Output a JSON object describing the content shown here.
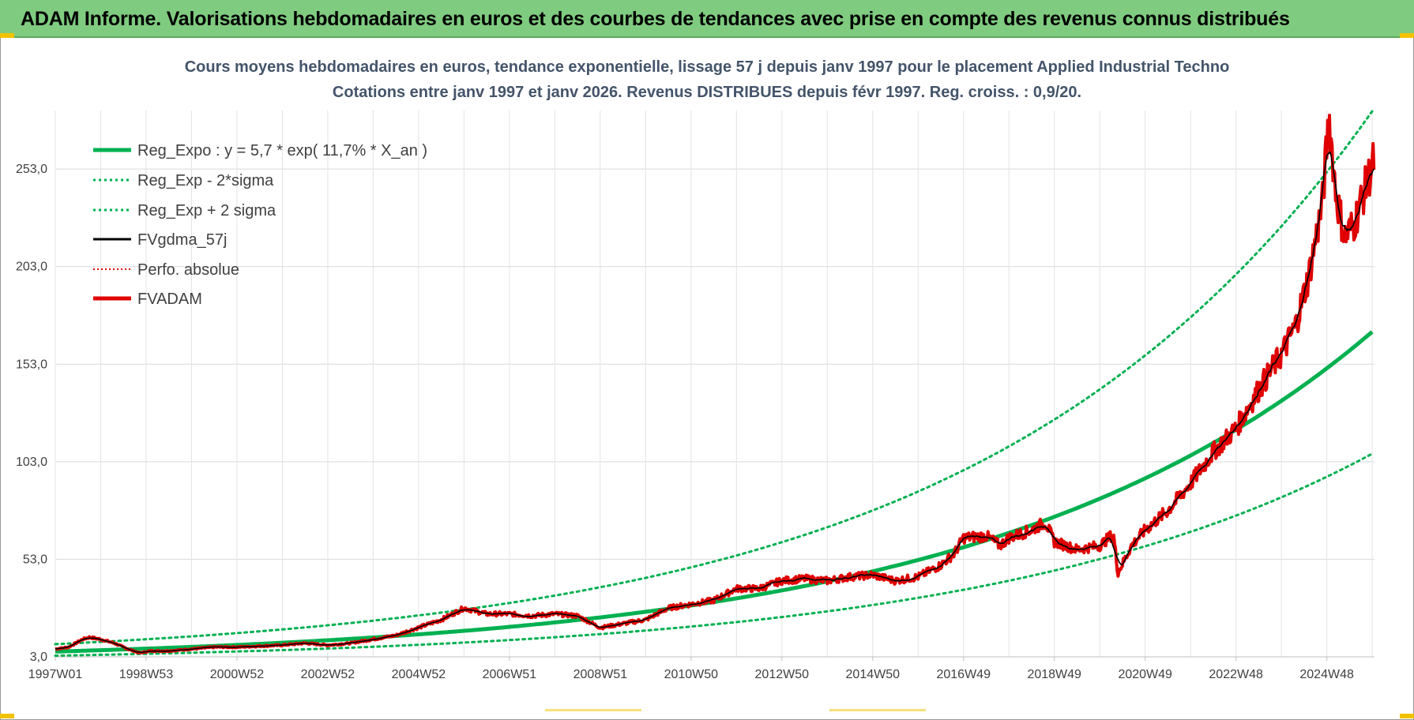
{
  "banner": {
    "title": "ADAM Informe. Valorisations hebdomadaires en euros et des courbes de tendances avec prise en compte des revenus connus distribués"
  },
  "colors": {
    "banner_bg": "#7fcb7f",
    "trend": "#00b050",
    "fv": "#e00000",
    "smooth": "#000000",
    "title": "#44546a"
  },
  "chart_data": {
    "type": "line",
    "title": "Cours moyens hebdomadaires en euros, tendance exponentielle, lissage 57 j depuis janv 1997 pour le placement Applied Industrial Techno",
    "subtitle": "Cotations entre janv 1997 et janv 2026. Revenus DISTRIBUES depuis févr 1997. Reg. croiss. : 0,9/20.",
    "xlabel": "",
    "ylabel": "",
    "x_ticks": [
      "1997W01",
      "1998W53",
      "2000W52",
      "2002W52",
      "2004W52",
      "2006W51",
      "2008W51",
      "2010W50",
      "2012W50",
      "2014W50",
      "2016W49",
      "2018W49",
      "2020W49",
      "2022W48",
      "2024W48"
    ],
    "y_ticks": [
      "3,0",
      "53,0",
      "103,0",
      "153,0",
      "203,0",
      "253,0"
    ],
    "xlim": [
      1997.0,
      2026.05
    ],
    "ylim": [
      3,
      283
    ],
    "grid": true,
    "legend_position": "top-left",
    "series": [
      {
        "name": "Reg_Expo : y = 5,7 * exp( 11,7% *  X_an )",
        "style": "trend",
        "formula": {
          "a": 5.7,
          "rate": 0.117
        }
      },
      {
        "name": "Reg_Exp - 2*sigma",
        "style": "trend-dotted",
        "formula": {
          "a": 3.6,
          "rate": 0.117
        }
      },
      {
        "name": "Reg_Exp + 2 sigma",
        "style": "trend-dotted",
        "formula": {
          "a": 9.5,
          "rate": 0.117
        }
      },
      {
        "name": "FVgdma_57j",
        "style": "smooth"
      },
      {
        "name": "Perfo. absolue",
        "style": "perf-dotted"
      },
      {
        "name": "FVADAM",
        "style": "fv",
        "points": [
          [
            1997.0,
            7
          ],
          [
            1997.3,
            8
          ],
          [
            1997.6,
            12
          ],
          [
            1997.75,
            13
          ],
          [
            1998.0,
            12
          ],
          [
            1998.3,
            10
          ],
          [
            1998.6,
            7
          ],
          [
            1998.85,
            5
          ],
          [
            1999.1,
            6
          ],
          [
            1999.5,
            6
          ],
          [
            2000.0,
            7
          ],
          [
            2000.5,
            8
          ],
          [
            2001.0,
            8
          ],
          [
            2001.5,
            8.5
          ],
          [
            2002.0,
            9
          ],
          [
            2002.5,
            10
          ],
          [
            2003.0,
            9
          ],
          [
            2003.5,
            10
          ],
          [
            2004.0,
            12
          ],
          [
            2004.5,
            14
          ],
          [
            2005.0,
            18
          ],
          [
            2005.5,
            22
          ],
          [
            2006.0,
            28
          ],
          [
            2006.5,
            25
          ],
          [
            2007.0,
            25
          ],
          [
            2007.5,
            24
          ],
          [
            2008.0,
            25
          ],
          [
            2008.5,
            24
          ],
          [
            2009.0,
            18
          ],
          [
            2009.5,
            20
          ],
          [
            2010.0,
            22
          ],
          [
            2010.5,
            28
          ],
          [
            2011.0,
            30
          ],
          [
            2011.5,
            32
          ],
          [
            2012.0,
            38
          ],
          [
            2012.5,
            38
          ],
          [
            2013.0,
            42
          ],
          [
            2013.5,
            43
          ],
          [
            2014.0,
            42
          ],
          [
            2014.5,
            44
          ],
          [
            2015.0,
            45
          ],
          [
            2015.5,
            42
          ],
          [
            2016.0,
            44
          ],
          [
            2016.5,
            50
          ],
          [
            2016.8,
            56
          ],
          [
            2017.0,
            64
          ],
          [
            2017.5,
            65
          ],
          [
            2017.8,
            60
          ],
          [
            2018.0,
            64
          ],
          [
            2018.5,
            68
          ],
          [
            2018.8,
            72
          ],
          [
            2019.0,
            62
          ],
          [
            2019.5,
            58
          ],
          [
            2020.0,
            60
          ],
          [
            2020.3,
            66
          ],
          [
            2020.4,
            46
          ],
          [
            2020.7,
            60
          ],
          [
            2021.0,
            68
          ],
          [
            2021.5,
            78
          ],
          [
            2022.0,
            92
          ],
          [
            2022.5,
            108
          ],
          [
            2023.0,
            120
          ],
          [
            2023.5,
            140
          ],
          [
            2024.0,
            158
          ],
          [
            2024.3,
            172
          ],
          [
            2024.6,
            198
          ],
          [
            2024.9,
            235
          ],
          [
            2025.05,
            280
          ],
          [
            2025.2,
            240
          ],
          [
            2025.4,
            218
          ],
          [
            2025.6,
            225
          ],
          [
            2025.8,
            240
          ],
          [
            2026.05,
            258
          ]
        ]
      }
    ]
  }
}
